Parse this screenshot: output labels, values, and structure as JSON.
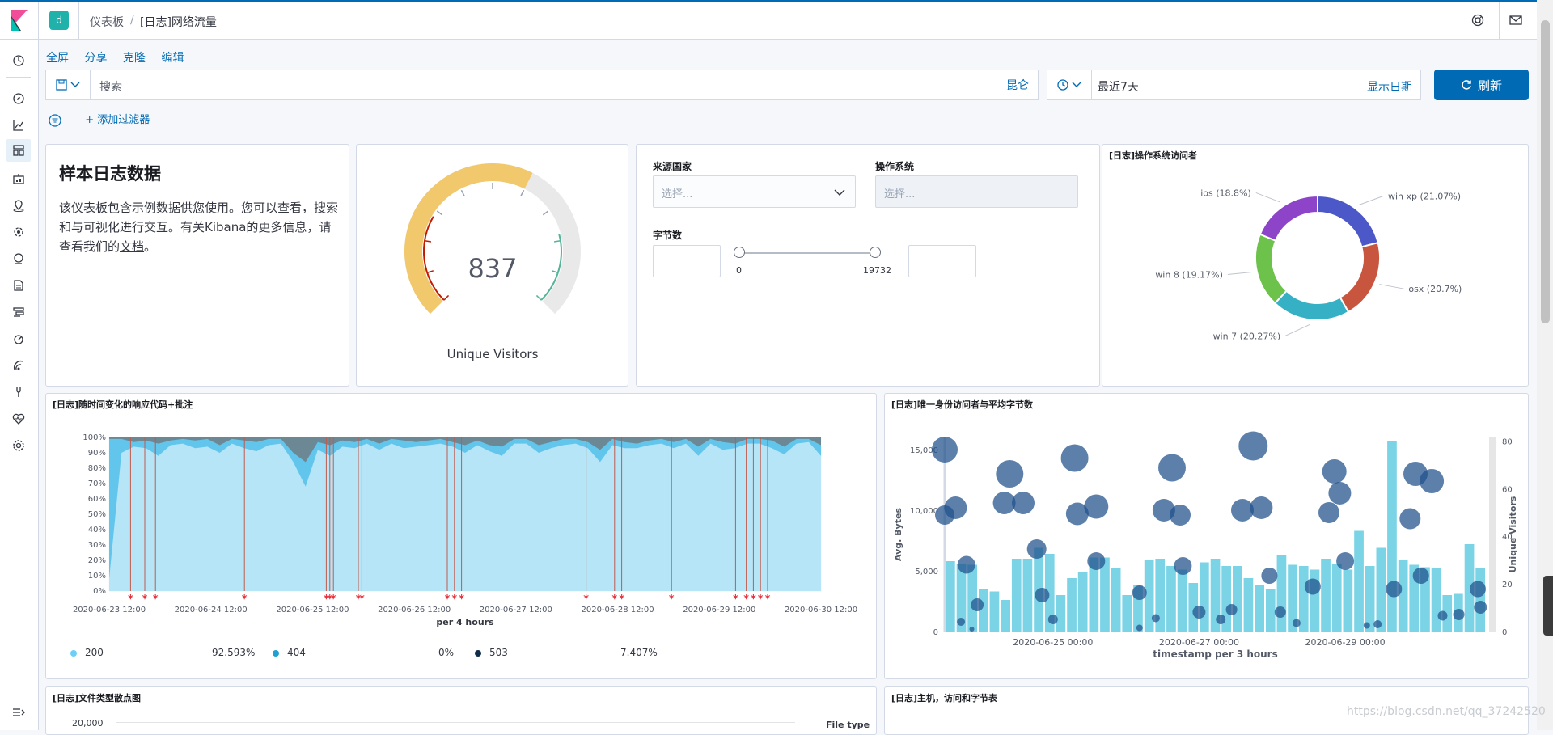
{
  "header": {
    "space_avatar": "d",
    "breadcrumb_root": "仪表板",
    "breadcrumb_sep": "/",
    "breadcrumb_current": "[日志]网络流量"
  },
  "menu": {
    "fullscreen": "全屏",
    "share": "分享",
    "clone": "克隆",
    "edit": "编辑"
  },
  "query": {
    "placeholder": "搜索",
    "language": "昆仑"
  },
  "time": {
    "range": "最近7天",
    "show_dates": "显示日期"
  },
  "refresh_label": "刷新",
  "filters": {
    "add": "+ 添加过滤器"
  },
  "markdown_panel": {
    "title": "样本日志数据",
    "body": "该仪表板包含示例数据供您使用。您可以查看，搜索和与可视化进行交互。有关Kibana的更多信息，请查看我们的",
    "link": "文档",
    "end": "。"
  },
  "gauge_panel": {
    "value": "837",
    "value_num": 837,
    "label": "Unique Visitors"
  },
  "controls_panel": {
    "country_label": "来源国家",
    "country_placeholder": "选择...",
    "os_label": "操作系统",
    "os_placeholder": "选择...",
    "bytes_label": "字节数",
    "bytes_min": "0",
    "bytes_max": "19732"
  },
  "os_panel": {
    "title": "[日志]操作系统访问者",
    "chart_data": {
      "type": "pie",
      "slices": [
        {
          "label": "win xp (21.07%)",
          "value": 21.07,
          "color": "#4c57c8"
        },
        {
          "label": "osx (20.7%)",
          "value": 20.7,
          "color": "#c8553d"
        },
        {
          "label": "win 7 (20.27%)",
          "value": 20.27,
          "color": "#36b0c4"
        },
        {
          "label": "win 8 (19.17%)",
          "value": 19.17,
          "color": "#6cc24a"
        },
        {
          "label": "ios (18.8%)",
          "value": 18.8,
          "color": "#8e44c8"
        }
      ]
    }
  },
  "response_panel": {
    "title": "[日志]随时间变化的响应代码+批注",
    "chart_data": {
      "type": "area",
      "xlabel": "per 4 hours",
      "y_ticks": [
        "100%",
        "90%",
        "80%",
        "70%",
        "60%",
        "50%",
        "40%",
        "30%",
        "20%",
        "10%",
        "0%"
      ],
      "x_ticks": [
        "2020-06-23 12:00",
        "2020-06-24 12:00",
        "2020-06-25 12:00",
        "2020-06-26 12:00",
        "2020-06-27 12:00",
        "2020-06-28 12:00",
        "2020-06-29 12:00",
        "2020-06-30 12:00"
      ],
      "series_200_pct": [
        0.08,
        0.9,
        0.94,
        0.93,
        0.88,
        0.95,
        0.96,
        0.93,
        0.94,
        0.9,
        0.96,
        0.93,
        0.91,
        0.95,
        0.96,
        0.84,
        0.68,
        0.92,
        0.88,
        0.94,
        0.93,
        0.96,
        0.92,
        0.96,
        0.93,
        0.94,
        0.95,
        0.96,
        0.94,
        0.9,
        0.95,
        0.91,
        0.88,
        0.96,
        0.96,
        0.9,
        0.93,
        0.95,
        0.96,
        0.93,
        0.84,
        0.95,
        0.93,
        0.93,
        0.95,
        0.96,
        0.93,
        0.96,
        0.88,
        0.96,
        0.92,
        0.93,
        0.96,
        0.96,
        0.93,
        0.89,
        0.96,
        0.97,
        0.88
      ],
      "series_404_pct": [
        0.99,
        0.99,
        0.97,
        0.98,
        0.96,
        0.98,
        0.99,
        0.98,
        0.99,
        0.95,
        0.99,
        0.98,
        0.97,
        0.99,
        0.99,
        0.9,
        0.84,
        0.97,
        0.95,
        0.98,
        0.97,
        0.99,
        0.96,
        0.99,
        0.98,
        0.97,
        0.98,
        0.99,
        0.97,
        0.95,
        0.98,
        0.95,
        0.94,
        0.99,
        0.99,
        0.95,
        0.97,
        0.99,
        0.99,
        0.97,
        0.92,
        0.99,
        0.97,
        0.96,
        0.98,
        0.99,
        0.97,
        0.99,
        0.94,
        0.99,
        0.97,
        0.96,
        0.99,
        0.99,
        0.98,
        0.94,
        0.99,
        0.99,
        0.95
      ],
      "annotations_at": [
        0.03,
        0.05,
        0.065,
        0.19,
        0.305,
        0.31,
        0.315,
        0.35,
        0.355,
        0.475,
        0.485,
        0.495,
        0.67,
        0.71,
        0.72,
        0.79,
        0.88,
        0.895,
        0.905,
        0.915,
        0.925
      ],
      "legend": [
        {
          "label": "200",
          "value": "92.593%",
          "color": "#6dcff6"
        },
        {
          "label": "404",
          "value": "0%",
          "color": "#1ea0d0"
        },
        {
          "label": "503",
          "value": "7.407%",
          "color": "#0f2c4a"
        }
      ]
    }
  },
  "unique_panel": {
    "title": "[日志]唯一身份访问者与平均字节数",
    "chart_data": {
      "type": "bar",
      "ylabel_left": "Avg. Bytes",
      "ylabel_right": "Unique Visitors",
      "xlabel": "timestamp per 3 hours",
      "y_left_ticks": [
        "15,000",
        "10,000",
        "5,000",
        "0"
      ],
      "y_right_ticks": [
        "80",
        "60",
        "40",
        "20",
        "0"
      ],
      "x_ticks": [
        "2020-06-25 00:00",
        "2020-06-27 00:00",
        "2020-06-29 00:00"
      ],
      "bars_avg_bytes": [
        5800,
        5600,
        5500,
        3500,
        3300,
        2600,
        6000,
        6000,
        6900,
        6400,
        3000,
        4400,
        4900,
        6100,
        6100,
        5200,
        3000,
        3800,
        5900,
        6000,
        5400,
        5100,
        4000,
        5700,
        6000,
        5400,
        5400,
        4400,
        3800,
        3500,
        6300,
        5500,
        5400,
        5100,
        6000,
        5600,
        5100,
        8300,
        5400,
        6900,
        15700,
        5900,
        5500,
        5300,
        5200,
        3000,
        3100,
        7200,
        5200
      ],
      "bubbles": [
        {
          "x": 0.0,
          "y": 15000,
          "r": 16
        },
        {
          "x": 0.0,
          "y": 9600,
          "r": 12
        },
        {
          "x": 0.02,
          "y": 10200,
          "r": 14
        },
        {
          "x": 0.04,
          "y": 5500,
          "r": 11
        },
        {
          "x": 0.06,
          "y": 2200,
          "r": 8
        },
        {
          "x": 0.03,
          "y": 800,
          "r": 5
        },
        {
          "x": 0.05,
          "y": 200,
          "r": 3
        },
        {
          "x": 0.12,
          "y": 13000,
          "r": 17
        },
        {
          "x": 0.11,
          "y": 10600,
          "r": 14
        },
        {
          "x": 0.145,
          "y": 10600,
          "r": 14
        },
        {
          "x": 0.17,
          "y": 6800,
          "r": 12
        },
        {
          "x": 0.18,
          "y": 3000,
          "r": 9
        },
        {
          "x": 0.2,
          "y": 1000,
          "r": 6
        },
        {
          "x": 0.24,
          "y": 14300,
          "r": 17
        },
        {
          "x": 0.245,
          "y": 9700,
          "r": 14
        },
        {
          "x": 0.28,
          "y": 10300,
          "r": 15
        },
        {
          "x": 0.28,
          "y": 5800,
          "r": 11
        },
        {
          "x": 0.36,
          "y": 3200,
          "r": 9
        },
        {
          "x": 0.36,
          "y": 300,
          "r": 4
        },
        {
          "x": 0.39,
          "y": 1100,
          "r": 5
        },
        {
          "x": 0.42,
          "y": 13500,
          "r": 17
        },
        {
          "x": 0.405,
          "y": 10000,
          "r": 14
        },
        {
          "x": 0.435,
          "y": 9600,
          "r": 13
        },
        {
          "x": 0.44,
          "y": 5400,
          "r": 11
        },
        {
          "x": 0.47,
          "y": 1600,
          "r": 8
        },
        {
          "x": 0.51,
          "y": 1000,
          "r": 6
        },
        {
          "x": 0.53,
          "y": 1800,
          "r": 7
        },
        {
          "x": 0.57,
          "y": 15300,
          "r": 18
        },
        {
          "x": 0.55,
          "y": 10000,
          "r": 14
        },
        {
          "x": 0.585,
          "y": 10200,
          "r": 14
        },
        {
          "x": 0.6,
          "y": 4600,
          "r": 10
        },
        {
          "x": 0.62,
          "y": 1600,
          "r": 7
        },
        {
          "x": 0.65,
          "y": 700,
          "r": 5
        },
        {
          "x": 0.72,
          "y": 13200,
          "r": 15
        },
        {
          "x": 0.73,
          "y": 11400,
          "r": 14
        },
        {
          "x": 0.71,
          "y": 9800,
          "r": 13
        },
        {
          "x": 0.68,
          "y": 3700,
          "r": 10
        },
        {
          "x": 0.74,
          "y": 5800,
          "r": 11
        },
        {
          "x": 0.78,
          "y": 500,
          "r": 4
        },
        {
          "x": 0.8,
          "y": 600,
          "r": 5
        },
        {
          "x": 0.87,
          "y": 13000,
          "r": 15
        },
        {
          "x": 0.9,
          "y": 12400,
          "r": 15
        },
        {
          "x": 0.86,
          "y": 9300,
          "r": 13
        },
        {
          "x": 0.83,
          "y": 3500,
          "r": 10
        },
        {
          "x": 0.88,
          "y": 4600,
          "r": 10
        },
        {
          "x": 0.92,
          "y": 1300,
          "r": 6
        },
        {
          "x": 0.95,
          "y": 1400,
          "r": 7
        },
        {
          "x": 0.985,
          "y": 3500,
          "r": 10
        },
        {
          "x": 0.99,
          "y": 2000,
          "r": 8
        }
      ]
    }
  },
  "filetype_panel": {
    "title": "[日志]文件类型散点图",
    "y_tick": "20,000",
    "legend_title": "File type"
  },
  "hosts_panel": {
    "title": "[日志]主机，访问和字节表"
  },
  "watermark": "https://blog.csdn.net/qq_37242520",
  "colors": {
    "accent": "#006bb4",
    "gauge_fill": "#f1c86b",
    "gauge_track": "#e9e9e9",
    "gauge_red": "#bf1b00",
    "gauge_green": "#54b399"
  }
}
